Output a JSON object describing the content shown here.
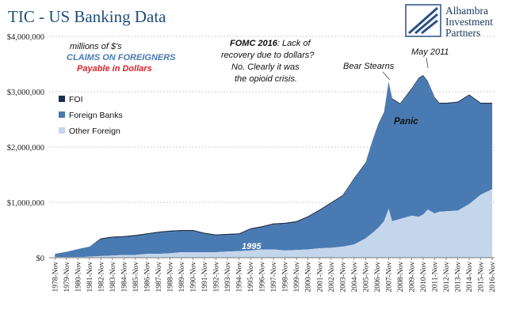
{
  "title": "TIC - US Banking Data",
  "logo": {
    "lines": [
      "Alhambra",
      "Investment",
      "Partners"
    ]
  },
  "notes": {
    "units": "millions of $'s",
    "claims": "CLAIMS  ON FOREIGNERS",
    "payable": "Payable in Dollars",
    "fomc_bold": "FOMC 2016",
    "fomc_rest": ": Lack of",
    "fomc_lines": [
      "recovery due to dollars?",
      "No. Clearly it was",
      "the opioid crisis."
    ],
    "bear": "Bear Stearns",
    "may": "May 2011",
    "panic": "Panic",
    "y1995": "1995"
  },
  "colors": {
    "foi": "#1b2f4d",
    "foreign_banks": "#4a7ab2",
    "other_foreign": "#c4d6ec",
    "title": "#1f4e79",
    "claims": "#4a7ab2",
    "payable": "#d9232a"
  },
  "chart_data": {
    "type": "area",
    "stacked": true,
    "title": "TIC - US Banking Data",
    "ylim": [
      0,
      4000000
    ],
    "yticks": [
      0,
      1000000,
      2000000,
      3000000,
      4000000
    ],
    "ytick_labels": [
      "$0",
      "$1,000,000",
      "$2,000,000",
      "$3,000,000",
      "$4,000,000"
    ],
    "xtick_labels": [
      "1978-Nov",
      "1979-Nov",
      "1980-Nov",
      "1981-Nov",
      "1982-Nov",
      "1983-Nov",
      "1984-Nov",
      "1985-Nov",
      "1986-Nov",
      "1987-Nov",
      "1988-Nov",
      "1989-Nov",
      "1990-Nov",
      "1991-Nov",
      "1992-Nov",
      "1993-Nov",
      "1994-Nov",
      "1995-Nov",
      "1996-Nov",
      "1997-Nov",
      "1998-Nov",
      "1999-Nov",
      "2000-Nov",
      "2001-Nov",
      "2002-Nov",
      "2003-Nov",
      "2004-Nov",
      "2005-Nov",
      "2006-Nov",
      "2007-Nov",
      "2008-Nov",
      "2009-Nov",
      "2010-Nov",
      "2011-Nov",
      "2012-Nov",
      "2013-Nov",
      "2014-Nov",
      "2015-Nov",
      "2016-Nov"
    ],
    "grid": true,
    "legend": "left",
    "x": [
      1978.9,
      1980,
      1981,
      1981.9,
      1982.9,
      1983.9,
      1984.9,
      1985.9,
      1986.9,
      1987.9,
      1988.9,
      1989.9,
      1990.9,
      1991.9,
      1992.9,
      1993.9,
      1994.9,
      1995.9,
      1996.9,
      1997.9,
      1998.9,
      1999.9,
      2000.9,
      2001.9,
      2002.9,
      2003.9,
      2004.9,
      2005.9,
      2006.5,
      2007.0,
      2007.5,
      2007.9,
      2008.2,
      2008.9,
      2009.9,
      2010.5,
      2010.9,
      2011.3,
      2011.9,
      2012.3,
      2012.9,
      2013.9,
      2014.9,
      2015.9,
      2016.9
    ],
    "series": [
      {
        "name": "FOI",
        "values": [
          0,
          0,
          0,
          0,
          20000,
          20000,
          20000,
          20000,
          20000,
          20000,
          20000,
          20000,
          20000,
          20000,
          20000,
          20000,
          20000,
          20000,
          20000,
          20000,
          20000,
          20000,
          20000,
          20000,
          20000,
          20000,
          20000,
          20000,
          20000,
          20000,
          20000,
          20000,
          20000,
          20000,
          20000,
          20000,
          20000,
          20000,
          20000,
          20000,
          20000,
          20000,
          20000,
          20000,
          20000
        ]
      },
      {
        "name": "Foreign Banks",
        "values": [
          60000,
          100000,
          150000,
          180000,
          300000,
          320000,
          320000,
          340000,
          350000,
          380000,
          390000,
          380000,
          380000,
          330000,
          300000,
          300000,
          300000,
          380000,
          400000,
          450000,
          480000,
          500000,
          580000,
          680000,
          800000,
          910000,
          1180000,
          1350000,
          1650000,
          1850000,
          1950000,
          2280000,
          2200000,
          2070000,
          2280000,
          2490000,
          2500000,
          2300000,
          2080000,
          1950000,
          1940000,
          1950000,
          1960000,
          1640000,
          1540000
        ]
      },
      {
        "name": "Other Foreign",
        "values": [
          10000,
          10000,
          10000,
          20000,
          30000,
          40000,
          50000,
          50000,
          70000,
          70000,
          80000,
          100000,
          100000,
          100000,
          100000,
          110000,
          120000,
          130000,
          150000,
          150000,
          130000,
          140000,
          150000,
          170000,
          180000,
          200000,
          240000,
          350000,
          450000,
          540000,
          660000,
          880000,
          660000,
          700000,
          760000,
          740000,
          780000,
          870000,
          800000,
          830000,
          840000,
          850000,
          970000,
          1140000,
          1240000
        ]
      }
    ]
  },
  "legend_items": [
    {
      "label": "FOI"
    },
    {
      "label": "Foreign Banks"
    },
    {
      "label": "Other Foreign"
    }
  ]
}
